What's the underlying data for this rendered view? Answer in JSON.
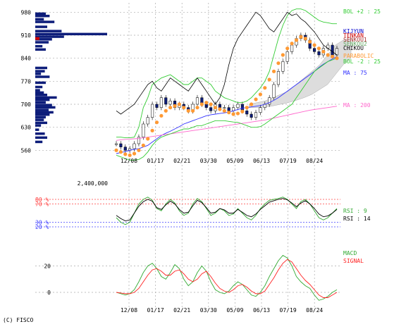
{
  "copyright": "(C) FISCO",
  "colors": {
    "grid": "#aaaaaa",
    "price": "#000000",
    "volume_profile": "#0d1d7a",
    "candle_up": "#ffffff",
    "candle_down": "#0d1d7a",
    "bollinger": "#33cc33",
    "ichimoku_cloud": "#dddddd",
    "kijyun": "#0000cc",
    "tenkan": "#cc0000",
    "senkou_a": "#aa3333",
    "senkou_b": "#66aa66",
    "chikou": "#000000",
    "ma75": "#3333ff",
    "ma200": "#ff66cc",
    "parabolic": "#ff9933",
    "rsi9": "#33aa33",
    "rsi14": "#000000",
    "macd": "#33aa33",
    "signal": "#ff2222",
    "rsi_upper_band": "#ff4444",
    "rsi_lower_band": "#4444ff"
  },
  "chart_data": [
    {
      "type": "line",
      "panel": "price",
      "x_ticks": [
        "12/08",
        "01/17",
        "02/21",
        "03/30",
        "05/09",
        "06/13",
        "07/19",
        "08/24"
      ],
      "y_ticks": [
        560,
        630,
        700,
        770,
        840,
        910,
        980
      ],
      "ylim": [
        520,
        1000
      ],
      "volume_label": "2,400,000",
      "grid": true,
      "legend": [
        {
          "label": "BOL +2 : 25",
          "color": "#33cc33"
        },
        {
          "label": "KIJYUN",
          "color": "#0000cc"
        },
        {
          "label": "TENKAN",
          "color": "#cc0000"
        },
        {
          "label": "SENKOU1",
          "color": "#aa3333"
        },
        {
          "label": "SENKOU2",
          "color": "#66aa66"
        },
        {
          "label": "CHIKOU",
          "color": "#000000"
        },
        {
          "label": "PARABOLIC",
          "color": "#ff9933"
        },
        {
          "label": "BOL -2 : 25",
          "color": "#33cc33"
        },
        {
          "label": "MA : 75",
          "color": "#3333ff"
        },
        {
          "label": "MA : 200",
          "color": "#ff66cc"
        }
      ],
      "series": [
        {
          "name": "close",
          "values": [
            580,
            570,
            560,
            565,
            580,
            600,
            640,
            660,
            700,
            690,
            720,
            700,
            710,
            690,
            700,
            690,
            680,
            700,
            720,
            700,
            690,
            680,
            700,
            690,
            690,
            680,
            690,
            700,
            680,
            670,
            660,
            675,
            690,
            700,
            720,
            760,
            800,
            830,
            860,
            880,
            900,
            910,
            895,
            870,
            860,
            850,
            870,
            880,
            850,
            870
          ]
        },
        {
          "name": "MA : 75",
          "values": [
            550,
            553,
            556,
            560,
            563,
            565,
            570,
            575,
            585,
            595,
            605,
            612,
            618,
            625,
            632,
            640,
            645,
            650,
            655,
            660,
            665,
            668,
            670,
            672,
            674,
            676,
            680,
            684,
            688,
            690,
            692,
            694,
            696,
            700,
            705,
            712,
            720,
            730,
            740,
            750,
            760,
            770,
            780,
            790,
            800,
            812,
            822,
            830,
            838,
            845
          ]
        },
        {
          "name": "MA : 200",
          "values": [
            590,
            592,
            593,
            594,
            595,
            596,
            598,
            600,
            602,
            604,
            606,
            608,
            610,
            612,
            614,
            616,
            618,
            620,
            622,
            624,
            626,
            628,
            630,
            632,
            634,
            636,
            638,
            640,
            642,
            644,
            646,
            648,
            650,
            652,
            655,
            658,
            661,
            664,
            667,
            670,
            673,
            676,
            679,
            682,
            684,
            686,
            688,
            690,
            692,
            694
          ]
        },
        {
          "name": "BOL +2 : 25",
          "values": [
            600,
            600,
            598,
            598,
            600,
            630,
            690,
            720,
            760,
            770,
            780,
            785,
            790,
            780,
            770,
            760,
            760,
            770,
            780,
            780,
            770,
            760,
            740,
            730,
            720,
            715,
            710,
            705,
            705,
            710,
            720,
            735,
            750,
            770,
            800,
            850,
            900,
            940,
            970,
            985,
            990,
            990,
            985,
            975,
            965,
            955,
            950,
            948,
            945,
            945
          ]
        },
        {
          "name": "BOL -2 : 25",
          "values": [
            545,
            540,
            535,
            530,
            530,
            532,
            540,
            555,
            575,
            590,
            600,
            605,
            610,
            615,
            620,
            625,
            625,
            630,
            635,
            635,
            640,
            645,
            650,
            650,
            650,
            648,
            646,
            645,
            640,
            635,
            630,
            630,
            632,
            640,
            650,
            660,
            670,
            680,
            690,
            700,
            720,
            740,
            760,
            780,
            800,
            810,
            820,
            830,
            835,
            840
          ]
        },
        {
          "name": "CHIKOU",
          "values": [
            680,
            670,
            680,
            690,
            700,
            720,
            740,
            760,
            770,
            750,
            740,
            760,
            780,
            770,
            760,
            750,
            740,
            760,
            780,
            760,
            740,
            720,
            700,
            720,
            760,
            820,
            870,
            900,
            920,
            940,
            960,
            980,
            970,
            950,
            930,
            920,
            940,
            960,
            980,
            970,
            975,
            960,
            950,
            935,
            920,
            900,
            880,
            870,
            860,
            850
          ]
        },
        {
          "name": "PARABOLIC",
          "values": [
            560,
            555,
            548,
            545,
            550,
            560,
            575,
            595,
            620,
            645,
            665,
            680,
            690,
            695,
            700,
            690,
            680,
            680,
            690,
            700,
            705,
            700,
            690,
            685,
            680,
            675,
            670,
            672,
            678,
            690,
            700,
            715,
            730,
            750,
            775,
            800,
            825,
            850,
            870,
            885,
            895,
            905,
            900,
            890,
            880,
            870,
            860,
            850,
            845,
            840
          ]
        }
      ]
    },
    {
      "type": "line",
      "panel": "RSI",
      "y_ticks": [
        20,
        30,
        70,
        80
      ],
      "y_tick_labels": [
        "20 %",
        "30 %",
        "70 %",
        "80 %"
      ],
      "ylim": [
        0,
        100
      ],
      "series": [
        {
          "name": "RSI : 9",
          "values": [
            40,
            30,
            25,
            30,
            50,
            70,
            80,
            85,
            78,
            60,
            55,
            70,
            80,
            72,
            55,
            45,
            50,
            70,
            82,
            75,
            60,
            45,
            50,
            60,
            55,
            45,
            48,
            60,
            50,
            40,
            35,
            45,
            60,
            70,
            78,
            80,
            82,
            85,
            80,
            70,
            60,
            75,
            80,
            70,
            55,
            40,
            35,
            40,
            50,
            60
          ]
        },
        {
          "name": "RSI : 14",
          "values": [
            45,
            38,
            33,
            35,
            50,
            65,
            75,
            80,
            76,
            62,
            58,
            68,
            76,
            70,
            58,
            50,
            52,
            66,
            78,
            73,
            62,
            50,
            52,
            60,
            57,
            50,
            50,
            58,
            52,
            45,
            42,
            48,
            58,
            66,
            74,
            77,
            80,
            82,
            79,
            72,
            64,
            72,
            77,
            70,
            60,
            48,
            42,
            44,
            50,
            58
          ]
        }
      ]
    },
    {
      "type": "line",
      "panel": "MACD",
      "y_ticks": [
        0,
        20
      ],
      "ylim": [
        -8,
        32
      ],
      "series": [
        {
          "name": "MACD",
          "values": [
            0,
            -1,
            -2,
            -1,
            2,
            8,
            15,
            20,
            22,
            18,
            12,
            10,
            15,
            21,
            18,
            10,
            5,
            8,
            15,
            20,
            16,
            8,
            2,
            0,
            -1,
            1,
            5,
            8,
            6,
            2,
            -2,
            -3,
            0,
            5,
            12,
            18,
            24,
            28,
            26,
            20,
            12,
            8,
            5,
            3,
            -2,
            -6,
            -5,
            -3,
            0,
            2
          ]
        },
        {
          "name": "SIGNAL",
          "values": [
            0,
            -0.5,
            -1,
            -1,
            0,
            3,
            8,
            13,
            17,
            18,
            16,
            13,
            13,
            16,
            17,
            14,
            10,
            8,
            10,
            14,
            16,
            12,
            7,
            3,
            1,
            0,
            2,
            5,
            6,
            4,
            1,
            -1,
            -1,
            1,
            6,
            11,
            17,
            22,
            25,
            23,
            18,
            13,
            9,
            6,
            2,
            -2,
            -4,
            -4,
            -2,
            0
          ]
        }
      ]
    }
  ]
}
